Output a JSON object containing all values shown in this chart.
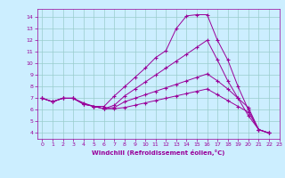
{
  "xlabel": "Windchill (Refroidissement éolien,°C)",
  "bg_color": "#cceeff",
  "line_color": "#990099",
  "grid_color": "#99cccc",
  "xlim": [
    -0.5,
    23
  ],
  "ylim": [
    3.5,
    14.7
  ],
  "xticks": [
    0,
    1,
    2,
    3,
    4,
    5,
    6,
    7,
    8,
    9,
    10,
    11,
    12,
    13,
    14,
    15,
    16,
    17,
    18,
    19,
    20,
    21,
    22,
    23
  ],
  "yticks": [
    4,
    5,
    6,
    7,
    8,
    9,
    10,
    11,
    12,
    13,
    14
  ],
  "series": [
    [
      7.0,
      6.7,
      7.0,
      7.0,
      6.6,
      6.3,
      6.3,
      7.2,
      8.0,
      8.8,
      9.6,
      10.5,
      11.1,
      13.0,
      14.1,
      14.2,
      14.2,
      12.0,
      10.3,
      8.0,
      6.0,
      4.3,
      4.0
    ],
    [
      7.0,
      6.7,
      7.0,
      7.0,
      6.5,
      6.3,
      6.1,
      6.4,
      7.2,
      7.8,
      8.4,
      9.0,
      9.6,
      10.2,
      10.8,
      11.4,
      12.0,
      10.3,
      8.5,
      7.0,
      5.5,
      4.3,
      4.0
    ],
    [
      7.0,
      6.7,
      7.0,
      7.0,
      6.5,
      6.3,
      6.1,
      6.2,
      6.7,
      7.0,
      7.3,
      7.6,
      7.9,
      8.2,
      8.5,
      8.8,
      9.1,
      8.5,
      7.8,
      7.0,
      6.2,
      4.3,
      4.0
    ],
    [
      7.0,
      6.7,
      7.0,
      7.0,
      6.5,
      6.3,
      6.1,
      6.1,
      6.2,
      6.4,
      6.6,
      6.8,
      7.0,
      7.2,
      7.4,
      7.6,
      7.8,
      7.3,
      6.8,
      6.3,
      5.8,
      4.3,
      4.0
    ]
  ]
}
